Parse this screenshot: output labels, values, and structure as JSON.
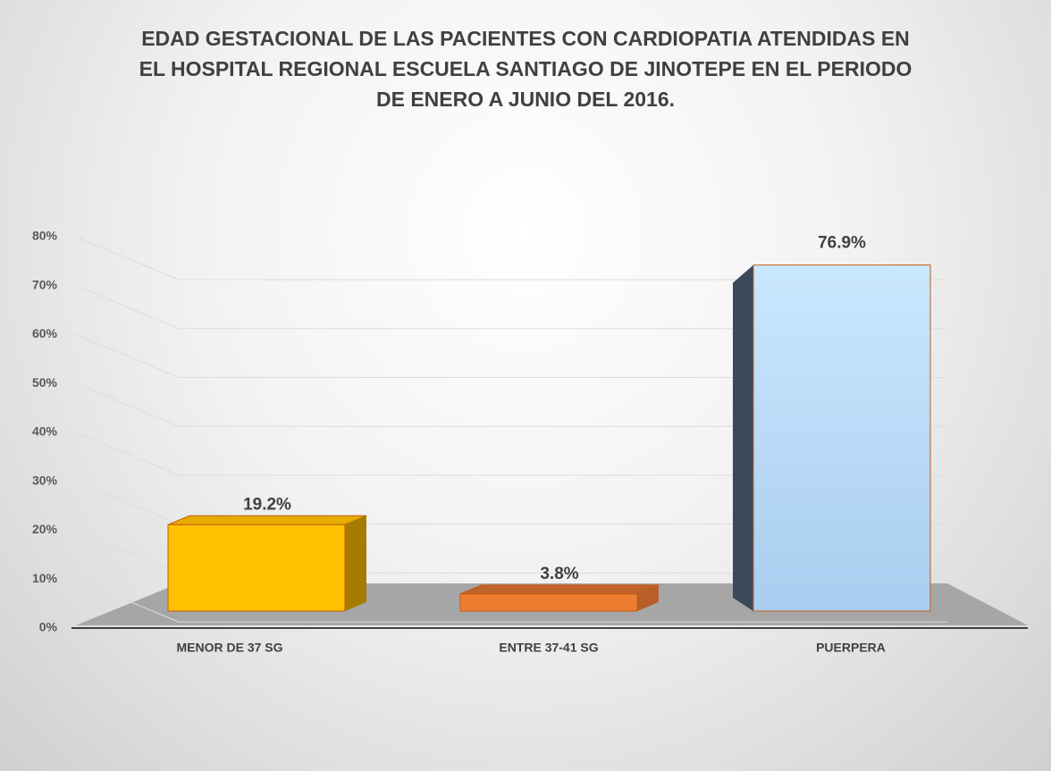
{
  "chart_data": {
    "type": "bar3d",
    "title": "EDAD GESTACIONAL DE LAS PACIENTES CON CARDIOPATIA ATENDIDAS EN EL HOSPITAL REGIONAL ESCUELA SANTIAGO DE JINOTEPE EN EL PERIODO DE ENERO A JUNIO DEL 2016.",
    "categories": [
      "MENOR DE 37 SG",
      "ENTRE 37-41 SG",
      "PUERPERA"
    ],
    "values": [
      19.2,
      3.8,
      76.9
    ],
    "value_labels": [
      "19.2%",
      "3.8%",
      "76.9%"
    ],
    "colors": [
      "#ffc000",
      "#ed7d31",
      "#bdd7ee"
    ],
    "ylim": [
      0,
      80
    ],
    "yticks": [
      {
        "value": 0,
        "label": "0%"
      },
      {
        "value": 10,
        "label": "10%"
      },
      {
        "value": 20,
        "label": "20%"
      },
      {
        "value": 30,
        "label": "30%"
      },
      {
        "value": 40,
        "label": "40%"
      },
      {
        "value": 50,
        "label": "50%"
      },
      {
        "value": 60,
        "label": "60%"
      },
      {
        "value": 70,
        "label": "70%"
      },
      {
        "value": 80,
        "label": "80%"
      }
    ],
    "grid": true
  }
}
